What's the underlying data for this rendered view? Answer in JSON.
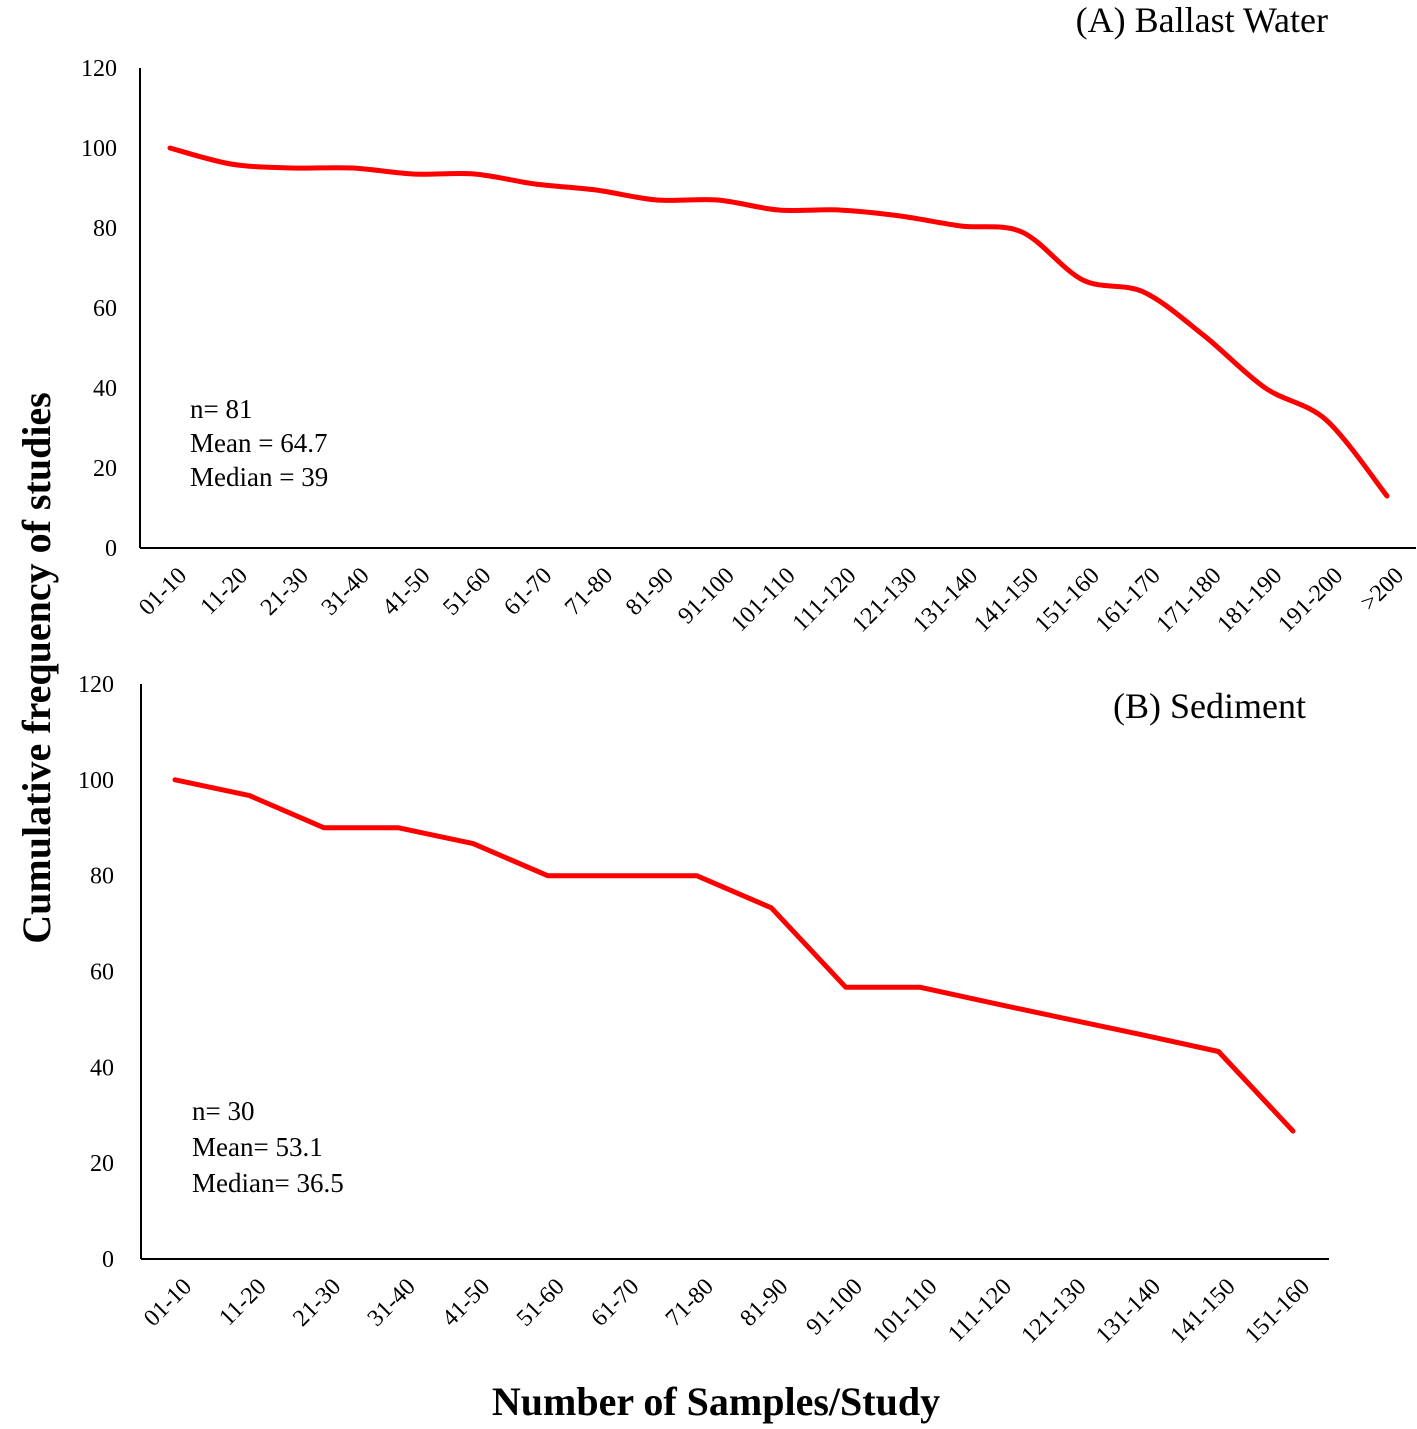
{
  "figure": {
    "ylabel": "Cumulative frequency of studies",
    "xlabel": "Number of Samples/Study"
  },
  "chart_data": [
    {
      "type": "line",
      "title": "(A) Ballast Water",
      "categories": [
        "01-10",
        "11-20",
        "21-30",
        "31-40",
        "41-50",
        "51-60",
        "61-70",
        "71-80",
        "81-90",
        "91-100",
        "101-110",
        "111-120",
        "121-130",
        "131-140",
        "141-150",
        "151-160",
        "161-170",
        "171-180",
        "181-190",
        "191-200",
        ">200"
      ],
      "values": [
        100,
        96,
        95,
        95,
        93.5,
        93.5,
        91,
        89.5,
        87,
        87,
        84.5,
        84.5,
        83,
        80.5,
        79,
        67,
        64,
        53,
        40,
        32,
        13
      ],
      "smooth": true,
      "color": "#ff0000",
      "ylim": [
        0,
        120
      ],
      "yticks": [
        "0",
        "20",
        "40",
        "60",
        "80",
        "100",
        "120"
      ],
      "annotations": [
        "n= 81",
        "Mean = 64.7",
        "Median = 39"
      ]
    },
    {
      "type": "line",
      "title": "(B) Sediment",
      "categories": [
        "01-10",
        "11-20",
        "21-30",
        "31-40",
        "41-50",
        "51-60",
        "61-70",
        "71-80",
        "81-90",
        "91-100",
        "101-110",
        "111-120",
        "121-130",
        "131-140",
        "141-150",
        "151-160"
      ],
      "values": [
        100,
        96.7,
        90,
        90,
        86.7,
        80,
        80,
        80,
        73.3,
        56.7,
        56.7,
        53.3,
        50,
        46.7,
        43.3,
        26.7
      ],
      "smooth": false,
      "color": "#ff0000",
      "ylim": [
        0,
        120
      ],
      "yticks": [
        "0",
        "20",
        "40",
        "60",
        "80",
        "100",
        "120"
      ],
      "annotations": [
        "n= 30",
        "Mean= 53.1",
        "Median= 36.5"
      ]
    }
  ]
}
